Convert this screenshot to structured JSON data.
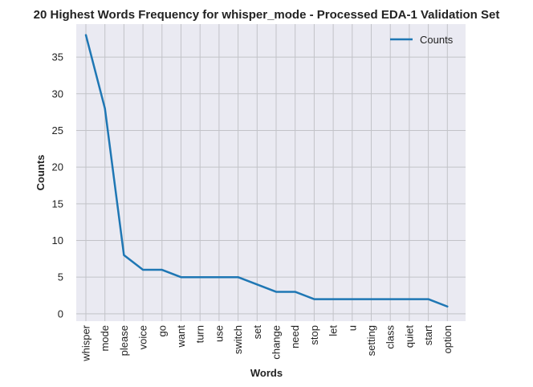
{
  "chart_data": {
    "type": "line",
    "title": "20 Highest Words Frequency for whisper_mode - Processed EDA-1 Validation Set",
    "xlabel": "Words",
    "ylabel": "Counts",
    "categories": [
      "whisper",
      "mode",
      "please",
      "voice",
      "go",
      "want",
      "turn",
      "use",
      "switch",
      "set",
      "change",
      "need",
      "stop",
      "let",
      "u",
      "setting",
      "class",
      "quiet",
      "start",
      "option"
    ],
    "series": [
      {
        "name": "Counts",
        "color": "#1f77b4",
        "values": [
          38,
          28,
          8,
          6,
          6,
          5,
          5,
          5,
          5,
          4,
          3,
          3,
          2,
          2,
          2,
          2,
          2,
          2,
          2,
          1
        ]
      }
    ],
    "yticks": [
      0,
      5,
      10,
      15,
      20,
      25,
      30,
      35
    ],
    "ylim": [
      -1,
      39.5
    ],
    "grid": true,
    "legend_position": "top-right",
    "colors": {
      "plot_background": "#eaeaf2",
      "grid": "#c2c3c8"
    }
  }
}
